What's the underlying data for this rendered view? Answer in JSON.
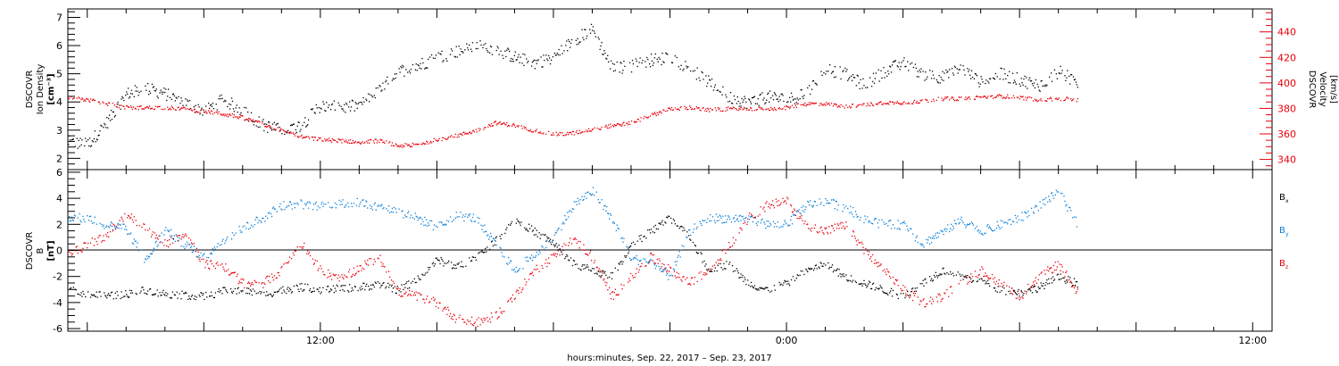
{
  "chart_data": [
    {
      "type": "scatter",
      "x_unit": "hours since Sep. 22, 2017 00:00",
      "xlim": [
        5.5,
        36.5
      ],
      "x_ticks": [
        {
          "value": 12,
          "label": "12:00"
        },
        {
          "value": 24,
          "label": "0:00"
        },
        {
          "value": 36,
          "label": "12:00"
        }
      ],
      "xlabel": "hours:minutes, Sep. 22, 2017 – Sep. 23, 2017",
      "ylabel_left": {
        "line1": "DSCOVR",
        "line2": "Ion Density",
        "line3": "[cm⁻³]"
      },
      "ylabel_right": {
        "line1": "DSCOVR",
        "line2": "Velocity",
        "line3": "[km/s]"
      },
      "ylim_left": [
        1.6,
        7.3
      ],
      "ylim_right": [
        332,
        458
      ],
      "y_ticks_left": [
        "2",
        "3",
        "4",
        "5",
        "6",
        "7"
      ],
      "y_ticks_right": [
        "340",
        "360",
        "380",
        "400",
        "420",
        "440"
      ],
      "series": [
        {
          "axis": "left",
          "color": "#000000",
          "x": [
            5.5,
            6.0,
            6.5,
            7.0,
            7.5,
            8.0,
            8.5,
            9.0,
            9.5,
            10.0,
            10.5,
            11.0,
            11.5,
            12.0,
            12.5,
            13.0,
            13.5,
            14.0,
            14.5,
            15.0,
            15.5,
            16.0,
            16.5,
            17.0,
            17.5,
            18.0,
            18.5,
            19.0,
            19.5,
            20.0,
            20.5,
            21.0,
            21.5,
            22.0,
            22.5,
            23.0,
            23.5,
            24.0,
            24.5,
            25.0,
            25.5,
            26.0,
            26.5,
            27.0,
            27.5,
            28.0,
            28.5,
            29.0,
            29.5,
            30.0,
            30.5,
            31.0,
            31.5
          ],
          "y": [
            2.6,
            2.5,
            3.3,
            4.3,
            4.5,
            4.3,
            4.0,
            3.7,
            4.1,
            3.7,
            3.2,
            3.0,
            3.2,
            3.9,
            3.8,
            3.9,
            4.4,
            5.1,
            5.3,
            5.6,
            5.8,
            6.0,
            5.9,
            5.6,
            5.4,
            5.6,
            6.2,
            6.6,
            5.2,
            5.3,
            5.5,
            5.6,
            5.2,
            4.7,
            4.2,
            4.0,
            4.2,
            4.1,
            4.3,
            5.2,
            5.0,
            4.6,
            5.1,
            5.4,
            5.0,
            4.9,
            5.2,
            4.7,
            5.0,
            4.8,
            4.6,
            5.1,
            4.7
          ]
        },
        {
          "axis": "right",
          "color": "#e8000b",
          "x": [
            5.5,
            6.0,
            6.5,
            7.0,
            7.5,
            8.0,
            8.5,
            9.0,
            9.5,
            10.0,
            10.5,
            11.0,
            11.5,
            12.0,
            12.5,
            13.0,
            13.5,
            14.0,
            14.5,
            15.0,
            15.5,
            16.0,
            16.5,
            17.0,
            17.5,
            18.0,
            18.5,
            19.0,
            19.5,
            20.0,
            20.5,
            21.0,
            21.5,
            22.0,
            22.5,
            23.0,
            23.5,
            24.0,
            24.5,
            25.0,
            25.5,
            26.0,
            26.5,
            27.0,
            27.5,
            28.0,
            28.5,
            29.0,
            29.5,
            30.0,
            30.5,
            31.0,
            31.5
          ],
          "y": [
            389,
            387,
            384,
            381,
            381,
            381,
            380,
            378,
            376,
            373,
            368,
            363,
            358,
            356,
            355,
            354,
            355,
            351,
            352,
            356,
            359,
            363,
            369,
            367,
            363,
            360,
            361,
            364,
            367,
            369,
            375,
            380,
            381,
            379,
            380,
            380,
            380,
            381,
            384,
            384,
            382,
            383,
            385,
            385,
            386,
            388,
            388,
            389,
            390,
            389,
            387,
            388,
            387
          ]
        }
      ]
    },
    {
      "type": "scatter",
      "x_unit": "hours since Sep. 22, 2017 00:00",
      "xlim": [
        5.5,
        36.5
      ],
      "xlabel": "hours:minutes, Sep. 22, 2017 – Sep. 23, 2017",
      "ylabel": {
        "line1": "DSCOVR",
        "line2": "B",
        "line3": "[nT]"
      },
      "ylim": [
        -6.2,
        6.2
      ],
      "y_ticks": [
        "-6",
        "-4",
        "-2",
        "0",
        "2",
        "4",
        "6"
      ],
      "zero_line": true,
      "series": [
        {
          "label_main": "B",
          "label_sub": "x",
          "color": "#000000",
          "x": [
            5.5,
            6.0,
            6.5,
            7.0,
            7.5,
            8.0,
            8.5,
            9.0,
            9.5,
            10.0,
            10.5,
            11.0,
            11.5,
            12.0,
            12.5,
            13.0,
            13.5,
            14.0,
            14.5,
            15.0,
            15.5,
            16.0,
            16.5,
            17.0,
            17.5,
            18.0,
            18.5,
            19.0,
            19.5,
            20.0,
            20.5,
            21.0,
            21.5,
            22.0,
            22.5,
            23.0,
            23.5,
            24.0,
            24.5,
            25.0,
            25.5,
            26.0,
            26.5,
            27.0,
            27.5,
            28.0,
            28.5,
            29.0,
            29.5,
            30.0,
            30.5,
            31.0,
            31.5
          ],
          "y": [
            -3.0,
            -3.3,
            -3.5,
            -3.3,
            -3.0,
            -3.3,
            -3.4,
            -3.5,
            -3.1,
            -3.0,
            -3.4,
            -3.0,
            -2.8,
            -3.0,
            -2.9,
            -2.8,
            -2.6,
            -3.0,
            -2.2,
            -0.7,
            -1.2,
            -0.5,
            0.8,
            2.4,
            1.5,
            0.6,
            -1.0,
            -1.5,
            -2.0,
            0.5,
            1.5,
            2.5,
            1.0,
            -1.5,
            -1.0,
            -2.5,
            -3.0,
            -2.5,
            -1.5,
            -1.0,
            -2.0,
            -2.5,
            -3.0,
            -3.5,
            -2.5,
            -1.5,
            -2.0,
            -2.3,
            -3.0,
            -3.2,
            -2.8,
            -2.0,
            -2.5
          ]
        },
        {
          "label_main": "B",
          "label_sub": "y",
          "color": "#0a7fd8",
          "x": [
            5.5,
            6.0,
            6.5,
            7.0,
            7.5,
            8.0,
            8.5,
            9.0,
            9.5,
            10.0,
            10.5,
            11.0,
            11.5,
            12.0,
            12.5,
            13.0,
            13.5,
            14.0,
            14.5,
            15.0,
            15.5,
            16.0,
            16.5,
            17.0,
            17.5,
            18.0,
            18.5,
            19.0,
            19.5,
            20.0,
            20.5,
            21.0,
            21.5,
            22.0,
            22.5,
            23.0,
            23.5,
            24.0,
            24.5,
            25.0,
            25.5,
            26.0,
            26.5,
            27.0,
            27.5,
            28.0,
            28.5,
            29.0,
            29.5,
            30.0,
            30.5,
            31.0,
            31.5
          ],
          "y": [
            2.6,
            2.5,
            2.0,
            1.7,
            -0.8,
            1.6,
            0.5,
            -0.5,
            0.8,
            1.8,
            2.5,
            3.5,
            3.6,
            3.4,
            3.6,
            3.7,
            3.4,
            3.0,
            2.5,
            1.8,
            2.7,
            2.5,
            0.5,
            -1.5,
            -0.3,
            1.0,
            3.5,
            4.6,
            2.5,
            -0.6,
            -0.9,
            -2.0,
            1.5,
            2.5,
            2.5,
            2.5,
            2.0,
            2.0,
            3.5,
            3.8,
            3.3,
            2.5,
            2.0,
            2.0,
            0.5,
            1.5,
            2.3,
            1.5,
            2.0,
            2.5,
            3.5,
            4.5,
            2.0
          ]
        },
        {
          "label_main": "B",
          "label_sub": "z",
          "color": "#e8000b",
          "x": [
            5.5,
            6.0,
            6.5,
            7.0,
            7.5,
            8.0,
            8.5,
            9.0,
            9.5,
            10.0,
            10.5,
            11.0,
            11.5,
            12.0,
            12.5,
            13.0,
            13.5,
            14.0,
            14.5,
            15.0,
            15.5,
            16.0,
            16.5,
            17.0,
            17.5,
            18.0,
            18.5,
            19.0,
            19.5,
            20.0,
            20.5,
            21.0,
            21.5,
            22.0,
            22.5,
            23.0,
            23.5,
            24.0,
            24.5,
            25.0,
            25.5,
            26.0,
            26.5,
            27.0,
            27.5,
            28.0,
            28.5,
            29.0,
            29.5,
            30.0,
            30.5,
            31.0,
            31.5
          ],
          "y": [
            -0.3,
            0.5,
            1.2,
            2.8,
            1.7,
            0.5,
            1.4,
            -1.0,
            -1.2,
            -2.5,
            -2.5,
            -1.5,
            0.6,
            -1.5,
            -2.2,
            -1.3,
            -0.5,
            -3.2,
            -3.5,
            -4.0,
            -5.2,
            -5.5,
            -5.0,
            -3.5,
            -1.5,
            -0.5,
            1.0,
            -0.5,
            -3.5,
            -2.0,
            -0.5,
            -1.5,
            -2.5,
            -1.5,
            0.3,
            2.5,
            3.5,
            3.8,
            2.0,
            1.5,
            2.0,
            0.0,
            -1.5,
            -3.0,
            -4.0,
            -3.5,
            -2.5,
            -1.5,
            -2.5,
            -3.5,
            -2.0,
            -1.0,
            -3.3
          ]
        }
      ]
    }
  ]
}
